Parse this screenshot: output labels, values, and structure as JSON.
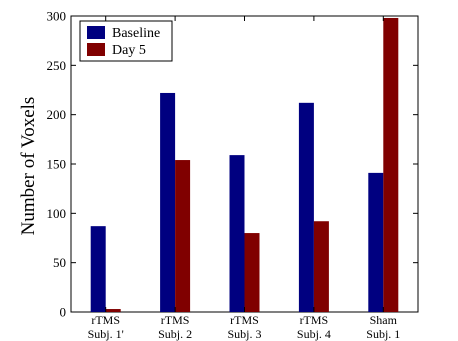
{
  "chart_data": {
    "type": "bar",
    "categories": [
      [
        "rTMS",
        "Subj. 1'"
      ],
      [
        "rTMS",
        "Subj. 2"
      ],
      [
        "rTMS",
        "Subj. 3"
      ],
      [
        "rTMS",
        "Subj. 4"
      ],
      [
        "Sham",
        "Subj. 1"
      ]
    ],
    "series": [
      {
        "name": "Baseline",
        "color": "#000080",
        "values": [
          87,
          222,
          159,
          212,
          141
        ]
      },
      {
        "name": "Day 5",
        "color": "#800000",
        "values": [
          3,
          154,
          80,
          92,
          298
        ]
      }
    ],
    "xlabel": "",
    "ylabel": "Number of Voxels",
    "ylim": [
      0,
      300
    ],
    "yticks": [
      0,
      50,
      100,
      150,
      200,
      250,
      300
    ],
    "grid": false,
    "legend": "top-left"
  }
}
